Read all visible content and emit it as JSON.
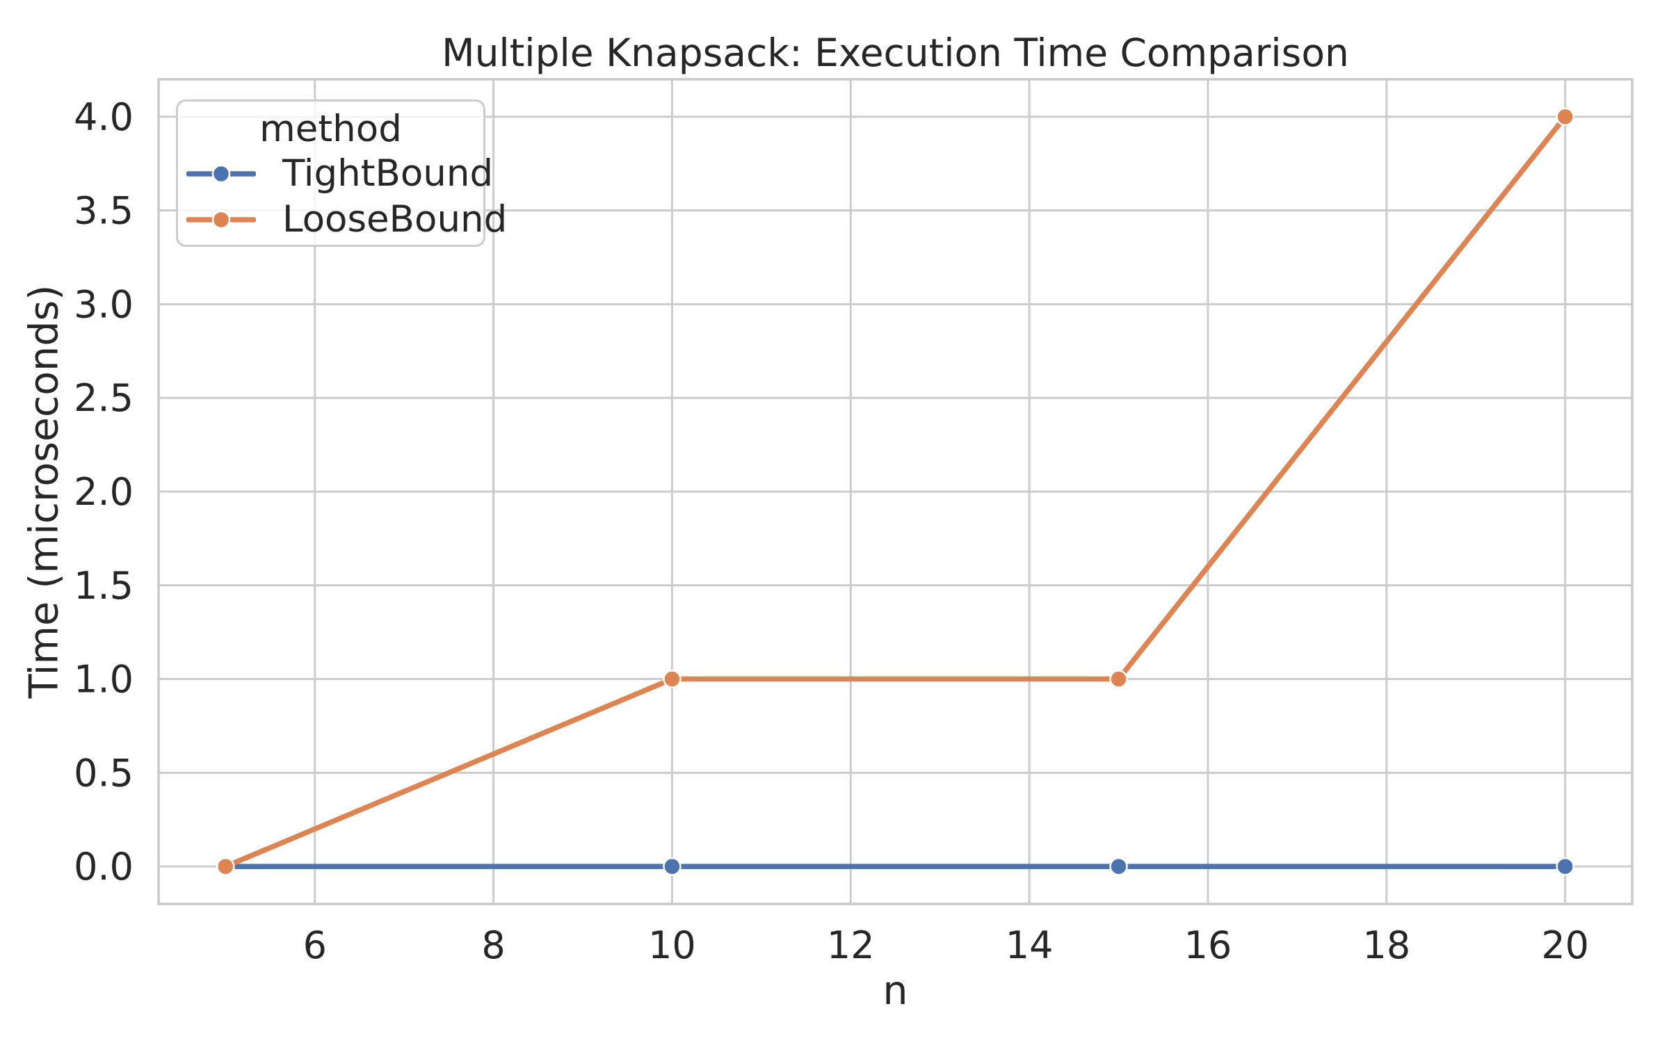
{
  "chart_data": {
    "type": "line",
    "title": "Multiple Knapsack: Execution Time Comparison",
    "xlabel": "n",
    "ylabel": "Time (microseconds)",
    "legend": {
      "title": "method",
      "position": "upper left",
      "entries": [
        "TightBound",
        "LooseBound"
      ]
    },
    "x": [
      5,
      10,
      15,
      20
    ],
    "series": [
      {
        "name": "TightBound",
        "color": "#4C72B0",
        "values": [
          0,
          0,
          0,
          0
        ]
      },
      {
        "name": "LooseBound",
        "color": "#DD8452",
        "values": [
          0,
          1,
          1,
          4
        ]
      }
    ],
    "xlim": [
      4.25,
      20.75
    ],
    "ylim": [
      -0.2,
      4.2
    ],
    "x_ticks": [
      6,
      8,
      10,
      12,
      14,
      16,
      18,
      20
    ],
    "x_tick_labels": [
      "6",
      "8",
      "10",
      "12",
      "14",
      "16",
      "18",
      "20"
    ],
    "y_ticks": [
      0,
      0.5,
      1,
      1.5,
      2,
      2.5,
      3,
      3.5,
      4
    ],
    "y_tick_labels": [
      "0.0",
      "0.5",
      "1.0",
      "1.5",
      "2.0",
      "2.5",
      "3.0",
      "3.5",
      "4.0"
    ],
    "grid": true
  },
  "style": {
    "background": "#ffffff",
    "grid_color": "#cccccc",
    "spine_color": "#c9c9c9",
    "text_color": "#262626",
    "marker_edge_color": "#ffffff"
  }
}
